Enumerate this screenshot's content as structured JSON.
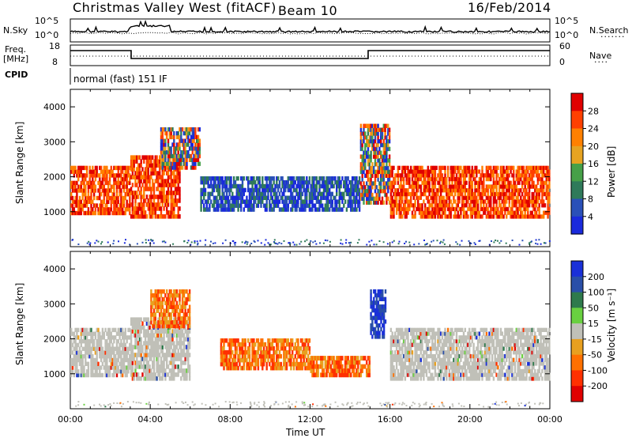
{
  "header": {
    "station": "Christmas Valley West (fitACF)",
    "beam": "Beam 10",
    "date": "16/Feb/2014"
  },
  "strips": {
    "nsky_label": "N.Sky",
    "nsky_ticks": [
      "10^5",
      "10^0"
    ],
    "nsearch_label": "N.Search",
    "nsearch_ticks": [
      "10^5",
      "10^0"
    ],
    "freq_label_1": "Freq.",
    "freq_label_2": "[MHz]",
    "freq_ticks": [
      "18",
      "8"
    ],
    "nave_label": "Nave",
    "nave_ticks": [
      "60",
      "0"
    ],
    "cpid_label": "CPID",
    "cpid_text": "normal (fast) 151 IF"
  },
  "colors": {
    "power": [
      "#1a2adc",
      "#2a50b8",
      "#2f7a5a",
      "#46a048",
      "#e6a321",
      "#ff8000",
      "#ff4000",
      "#e00000"
    ],
    "velocity": [
      "#1a30d8",
      "#2a4fa8",
      "#2e7a4c",
      "#69d040",
      "#c0c0b8",
      "#e8a020",
      "#ff7000",
      "#ff3000",
      "#e00000"
    ]
  },
  "chart_data": [
    {
      "type": "heatmap",
      "panel": "power",
      "xlabel": "Time UT",
      "ylabel": "Slant Range [km]",
      "x_ticks": [
        "00:00",
        "04:00",
        "08:00",
        "12:00",
        "16:00",
        "20:00",
        "00:00"
      ],
      "y_ticks": [
        "1000",
        "2000",
        "3000",
        "4000"
      ],
      "xlim_hours": [
        0,
        24
      ],
      "ylim_km": [
        0,
        4500
      ],
      "colorbar_label": "Power [dB]",
      "colorbar_ticks": [
        "4",
        "8",
        "12",
        "16",
        "20",
        "24",
        "28"
      ],
      "echo_regions": [
        {
          "t0": 0.0,
          "t1": 3.0,
          "r0": 900,
          "r1": 2300,
          "level": "strong"
        },
        {
          "t0": 3.0,
          "t1": 5.5,
          "r0": 800,
          "r1": 2600,
          "level": "strong"
        },
        {
          "t0": 4.5,
          "t1": 6.5,
          "r0": 2200,
          "r1": 3400,
          "level": "medium"
        },
        {
          "t0": 6.5,
          "t1": 14.5,
          "r0": 1000,
          "r1": 2000,
          "level": "weak"
        },
        {
          "t0": 14.5,
          "t1": 16.0,
          "r0": 1200,
          "r1": 3500,
          "level": "medium"
        },
        {
          "t0": 16.0,
          "t1": 24.0,
          "r0": 800,
          "r1": 2300,
          "level": "strong"
        }
      ]
    },
    {
      "type": "heatmap",
      "panel": "velocity",
      "xlabel": "Time UT",
      "ylabel": "Slant Range [km]",
      "x_ticks": [
        "00:00",
        "04:00",
        "08:00",
        "12:00",
        "16:00",
        "20:00",
        "00:00"
      ],
      "y_ticks": [
        "1000",
        "2000",
        "3000",
        "4000"
      ],
      "xlim_hours": [
        0,
        24
      ],
      "ylim_km": [
        0,
        4500
      ],
      "colorbar_label": "Velocity [m s⁻¹]",
      "colorbar_ticks": [
        "200",
        "100",
        "50",
        "15",
        "-15",
        "-50",
        "-100",
        "-200"
      ],
      "echo_regions": [
        {
          "t0": 0.0,
          "t1": 3.0,
          "r0": 900,
          "r1": 2300,
          "velocity": "near-zero"
        },
        {
          "t0": 3.0,
          "t1": 6.0,
          "r0": 800,
          "r1": 2600,
          "velocity": "near-zero"
        },
        {
          "t0": 4.0,
          "t1": 6.0,
          "r0": 2300,
          "r1": 3400,
          "velocity": "negative"
        },
        {
          "t0": 7.5,
          "t1": 12.0,
          "r0": 1100,
          "r1": 2000,
          "velocity": "negative"
        },
        {
          "t0": 12.0,
          "t1": 15.0,
          "r0": 900,
          "r1": 1500,
          "velocity": "negative"
        },
        {
          "t0": 15.0,
          "t1": 15.8,
          "r0": 2000,
          "r1": 3400,
          "velocity": "positive"
        },
        {
          "t0": 16.0,
          "t1": 24.0,
          "r0": 800,
          "r1": 2300,
          "velocity": "near-zero"
        }
      ]
    }
  ]
}
